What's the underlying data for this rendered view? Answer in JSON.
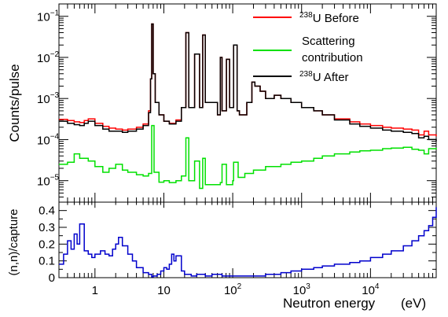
{
  "chart_data": [
    {
      "type": "line",
      "title": "",
      "xlabel": "",
      "ylabel": "Counts/pulse",
      "x_scale": "log",
      "y_scale": "log",
      "xlim": [
        0.3,
        90000
      ],
      "ylim": [
        3e-06,
        0.2
      ],
      "grid": false,
      "legend_position": "top-right",
      "y_ticks": [
        {
          "value": 1e-05,
          "base": "10",
          "exp": "−5"
        },
        {
          "value": 0.0001,
          "base": "10",
          "exp": "−4"
        },
        {
          "value": 0.001,
          "base": "10",
          "exp": "−3"
        },
        {
          "value": 0.01,
          "base": "10",
          "exp": "−2"
        },
        {
          "value": 0.1,
          "base": "10",
          "exp": "−1"
        }
      ],
      "series": [
        {
          "name": "238U Before",
          "legend_sup": "238",
          "legend_text": "U Before",
          "color": "#ff0000",
          "x": [
            0.3,
            0.4,
            0.5,
            0.6,
            0.7,
            0.8,
            1.0,
            1.3,
            1.6,
            2.0,
            2.5,
            3.0,
            4.0,
            5.0,
            6.0,
            6.4,
            6.67,
            7.0,
            7.5,
            8.5,
            10,
            12,
            15,
            18,
            20.9,
            23,
            28,
            33,
            36.7,
            40,
            48,
            60,
            66,
            70,
            80,
            81,
            90,
            100,
            103,
            116,
            125,
            140,
            160,
            190,
            210,
            250,
            300,
            400,
            500,
            700,
            1000,
            1500,
            2000,
            3000,
            5000,
            7000,
            10000,
            15000,
            20000,
            30000,
            40000,
            50000,
            60000,
            70000,
            90000
          ],
          "y": [
            0.00031,
            0.00029,
            0.00027,
            0.00026,
            0.00029,
            0.00032,
            0.00025,
            0.00021,
            0.00019,
            0.00018,
            0.00017,
            0.00018,
            0.0002,
            0.00024,
            0.0005,
            0.003,
            0.065,
            0.004,
            0.0008,
            0.0004,
            0.00028,
            0.00025,
            0.0003,
            0.0006,
            0.04,
            0.0006,
            0.012,
            0.0006,
            0.035,
            0.0008,
            0.0008,
            0.0004,
            0.01,
            0.0005,
            0.0005,
            0.009,
            0.0006,
            0.0006,
            0.02,
            0.0005,
            0.0004,
            0.0004,
            0.0008,
            0.0025,
            0.002,
            0.0015,
            0.001,
            0.0012,
            0.001,
            0.0008,
            0.0006,
            0.0005,
            0.0004,
            0.00032,
            0.00027,
            0.00024,
            0.00022,
            0.0002,
            0.00019,
            0.00018,
            0.00017,
            0.00013,
            0.00016,
            0.00013,
            0.00012
          ]
        },
        {
          "name": "Scattering contribution",
          "legend_lines": [
            "Scattering",
            "contribution"
          ],
          "color": "#00e000",
          "x": [
            0.3,
            0.4,
            0.5,
            0.6,
            0.8,
            1.0,
            1.3,
            1.6,
            2.0,
            2.5,
            3.0,
            4.0,
            5.0,
            6.0,
            6.67,
            7.2,
            8.5,
            10,
            12,
            15,
            18,
            20.9,
            23,
            28,
            33,
            36.7,
            40,
            50,
            66,
            70,
            81,
            100,
            103,
            120,
            150,
            200,
            300,
            500,
            700,
            1000,
            1500,
            2000,
            3000,
            5000,
            7000,
            10000,
            15000,
            20000,
            30000,
            40000,
            50000,
            60000,
            70000,
            90000
          ],
          "y": [
            2.5e-05,
            2.8e-05,
            4.5e-05,
            3.5e-05,
            3e-05,
            2.2e-05,
            1.6e-05,
            2e-05,
            2.5e-05,
            1.8e-05,
            1.6e-05,
            1.4e-05,
            1.3e-05,
            1.5e-05,
            0.00022,
            1.6e-05,
            9.2e-06,
            1e-05,
            9e-06,
            1e-05,
            1.3e-05,
            0.00011,
            1e-05,
            3e-05,
            6.5e-06,
            3.5e-05,
            8e-06,
            8e-06,
            9e-06,
            2.5e-05,
            8e-06,
            1e-05,
            2.8e-05,
            1.2e-05,
            1.5e-05,
            1.8e-05,
            2.2e-05,
            2.5e-05,
            2.8e-05,
            3e-05,
            3.5e-05,
            4e-05,
            4.5e-05,
            5e-05,
            5.3e-05,
            5.5e-05,
            6e-05,
            6.2e-05,
            6.5e-05,
            5.8e-05,
            5.5e-05,
            4.5e-05,
            6e-05,
            6.3e-05
          ]
        },
        {
          "name": "238U After",
          "legend_sup": "238",
          "legend_text": "U After",
          "color": "#000000",
          "x": [
            0.3,
            0.4,
            0.5,
            0.6,
            0.7,
            0.8,
            1.0,
            1.3,
            1.6,
            2.0,
            2.5,
            3.0,
            4.0,
            5.0,
            6.0,
            6.4,
            6.67,
            7.0,
            7.5,
            8.5,
            10,
            12,
            15,
            18,
            20.9,
            23,
            28,
            33,
            36.7,
            40,
            48,
            60,
            66,
            70,
            80,
            81,
            90,
            100,
            103,
            116,
            125,
            140,
            160,
            190,
            210,
            250,
            300,
            400,
            500,
            700,
            1000,
            1500,
            2000,
            3000,
            5000,
            7000,
            10000,
            15000,
            20000,
            30000,
            40000,
            50000,
            60000,
            70000,
            90000
          ],
          "y": [
            0.00028,
            0.00025,
            0.00023,
            0.00022,
            0.00025,
            0.00028,
            0.00022,
            0.00018,
            0.00016,
            0.00016,
            0.00015,
            0.00016,
            0.00018,
            0.00022,
            0.00045,
            0.003,
            0.065,
            0.004,
            0.0008,
            0.0004,
            0.00028,
            0.00024,
            0.00028,
            0.0006,
            0.04,
            0.0006,
            0.012,
            0.0006,
            0.035,
            0.0008,
            0.0008,
            0.0004,
            0.01,
            0.0005,
            0.0005,
            0.009,
            0.0006,
            0.0006,
            0.02,
            0.0005,
            0.0004,
            0.0004,
            0.0008,
            0.0025,
            0.002,
            0.0015,
            0.001,
            0.0012,
            0.001,
            0.0008,
            0.0006,
            0.0005,
            0.0004,
            0.0003,
            0.00024,
            0.00021,
            0.00019,
            0.00017,
            0.00016,
            0.00015,
            0.00014,
            0.00011,
            0.00012,
            0.0001,
            9e-05
          ]
        }
      ]
    },
    {
      "type": "line",
      "title": "",
      "xlabel": "Neutron energy",
      "xunit": "(eV)",
      "ylabel": "(n,n)/capture",
      "x_scale": "log",
      "y_scale": "linear",
      "xlim": [
        0.3,
        90000
      ],
      "ylim": [
        0,
        0.45
      ],
      "grid": false,
      "x_ticks": [
        {
          "value": 1,
          "base": "1",
          "exp": ""
        },
        {
          "value": 10,
          "base": "10",
          "exp": ""
        },
        {
          "value": 100,
          "base": "10",
          "exp": "2"
        },
        {
          "value": 1000,
          "base": "10",
          "exp": "3"
        },
        {
          "value": 10000,
          "base": "10",
          "exp": "4"
        }
      ],
      "y_ticks": [
        {
          "value": 0,
          "label": "0"
        },
        {
          "value": 0.1,
          "label": "0.1"
        },
        {
          "value": 0.2,
          "label": "0.2"
        },
        {
          "value": 0.3,
          "label": "0.3"
        },
        {
          "value": 0.4,
          "label": "0.4"
        }
      ],
      "series": [
        {
          "name": "(n,n)/capture",
          "color": "#0000cc",
          "x": [
            0.3,
            0.35,
            0.4,
            0.45,
            0.5,
            0.55,
            0.6,
            0.7,
            0.8,
            0.9,
            1.0,
            1.2,
            1.4,
            1.6,
            1.8,
            2.0,
            2.2,
            2.5,
            3.0,
            3.5,
            4.0,
            5.0,
            6.0,
            6.67,
            7.0,
            8.0,
            9.0,
            10,
            11,
            12,
            13,
            14,
            15,
            18,
            20,
            25,
            30,
            40,
            50,
            70,
            100,
            150,
            200,
            300,
            500,
            700,
            1000,
            1500,
            2000,
            3000,
            5000,
            7000,
            10000,
            15000,
            20000,
            30000,
            40000,
            50000,
            60000,
            70000,
            80000,
            90000
          ],
          "y": [
            0.08,
            0.14,
            0.22,
            0.17,
            0.26,
            0.2,
            0.32,
            0.16,
            0.14,
            0.12,
            0.14,
            0.16,
            0.14,
            0.13,
            0.17,
            0.2,
            0.24,
            0.19,
            0.14,
            0.1,
            0.06,
            0.03,
            0.02,
            0.005,
            0.01,
            0.02,
            0.04,
            0.06,
            0.05,
            0.08,
            0.14,
            0.1,
            0.13,
            0.04,
            0.02,
            0.01,
            0.02,
            0.01,
            0.02,
            0.01,
            0.01,
            0.01,
            0.01,
            0.02,
            0.03,
            0.04,
            0.05,
            0.06,
            0.07,
            0.08,
            0.09,
            0.1,
            0.12,
            0.14,
            0.16,
            0.19,
            0.22,
            0.25,
            0.28,
            0.31,
            0.36,
            0.42
          ]
        }
      ]
    }
  ]
}
